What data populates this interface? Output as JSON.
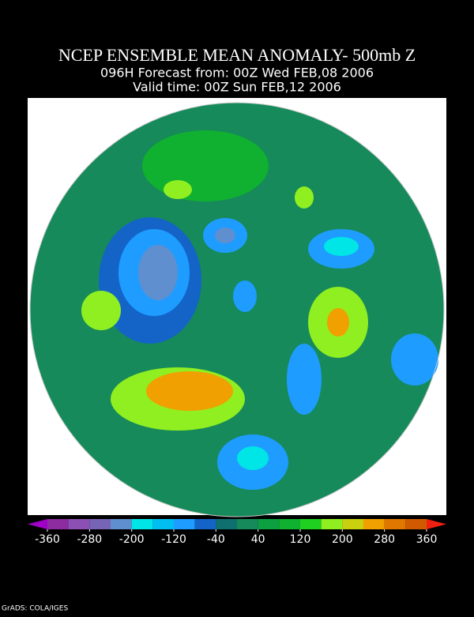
{
  "header": {
    "title": "NCEP ENSEMBLE MEAN ANOMALY- 500mb Z",
    "forecast": "096H Forecast from: 00Z Wed FEB,08 2006",
    "valid": "Valid time: 00Z Sun FEB,12 2006"
  },
  "colorbar": {
    "lim": [
      -360,
      360
    ],
    "ticks": [
      -360,
      -280,
      -200,
      -120,
      -40,
      40,
      120,
      200,
      280,
      360
    ],
    "colors": [
      "#a000c8",
      "#8c2ca0",
      "#8c50b4",
      "#7864b4",
      "#5f8fcf",
      "#00e6e6",
      "#00bff0",
      "#1e9cff",
      "#1464c8",
      "#107070",
      "#168a5a",
      "#0da040",
      "#10b030",
      "#20d020",
      "#90ef20",
      "#c8d010",
      "#f0a000",
      "#e07800",
      "#d05a00",
      "#f02010"
    ]
  },
  "footer": "GrADS: COLA/IGES"
}
